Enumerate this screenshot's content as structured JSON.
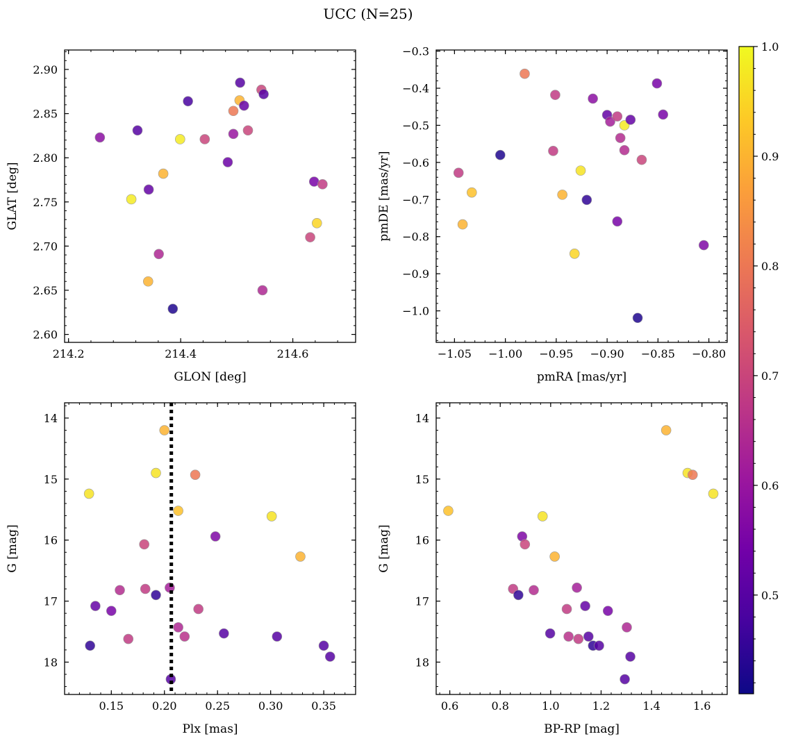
{
  "figure": {
    "title": "UCC (N=25)",
    "colormap": "plasma",
    "colorbar": {
      "range": [
        0.41,
        1.0
      ],
      "ticks": [
        0.5,
        0.6,
        0.7,
        0.8,
        0.9,
        1.0
      ],
      "tick_labels": [
        "0.5",
        "0.6",
        "0.7",
        "0.8",
        "0.9",
        "1.0"
      ]
    },
    "marker_edge_color": "#999999",
    "cmap_stops": [
      "#0d0887",
      "#46039f",
      "#7201a8",
      "#9c179e",
      "#bd3786",
      "#d8576b",
      "#ed7953",
      "#fb9f3a",
      "#fdca26",
      "#f0f921"
    ]
  },
  "chart_data": [
    {
      "type": "scatter",
      "xlabel": "GLON [deg]",
      "ylabel": "GLAT [deg]",
      "xlim": [
        214.193,
        214.712
      ],
      "ylim": [
        2.591,
        2.922
      ],
      "x_ticks": [
        214.2,
        214.4,
        214.6
      ],
      "x_tick_labels": [
        "214.2",
        "214.4",
        "214.6"
      ],
      "y_ticks": [
        2.6,
        2.65,
        2.7,
        2.75,
        2.8,
        2.85,
        2.9
      ],
      "y_tick_labels": [
        "2.60",
        "2.65",
        "2.70",
        "2.75",
        "2.80",
        "2.85",
        "2.90"
      ],
      "points": [
        {
          "x": 214.256,
          "y": 2.823,
          "c": 0.58
        },
        {
          "x": 214.323,
          "y": 2.831,
          "c": 0.5
        },
        {
          "x": 214.312,
          "y": 2.753,
          "c": 0.98
        },
        {
          "x": 214.343,
          "y": 2.764,
          "c": 0.52
        },
        {
          "x": 214.361,
          "y": 2.691,
          "c": 0.64
        },
        {
          "x": 214.342,
          "y": 2.66,
          "c": 0.9
        },
        {
          "x": 214.369,
          "y": 2.782,
          "c": 0.9
        },
        {
          "x": 214.386,
          "y": 2.629,
          "c": 0.43
        },
        {
          "x": 214.399,
          "y": 2.821,
          "c": 0.98
        },
        {
          "x": 214.413,
          "y": 2.864,
          "c": 0.48
        },
        {
          "x": 214.443,
          "y": 2.821,
          "c": 0.7
        },
        {
          "x": 214.484,
          "y": 2.795,
          "c": 0.53
        },
        {
          "x": 214.494,
          "y": 2.853,
          "c": 0.8
        },
        {
          "x": 214.494,
          "y": 2.827,
          "c": 0.6
        },
        {
          "x": 214.505,
          "y": 2.865,
          "c": 0.9
        },
        {
          "x": 214.506,
          "y": 2.885,
          "c": 0.5
        },
        {
          "x": 214.513,
          "y": 2.859,
          "c": 0.52
        },
        {
          "x": 214.52,
          "y": 2.831,
          "c": 0.7
        },
        {
          "x": 214.544,
          "y": 2.877,
          "c": 0.7
        },
        {
          "x": 214.548,
          "y": 2.872,
          "c": 0.5
        },
        {
          "x": 214.546,
          "y": 2.65,
          "c": 0.64
        },
        {
          "x": 214.631,
          "y": 2.71,
          "c": 0.7
        },
        {
          "x": 214.638,
          "y": 2.773,
          "c": 0.55
        },
        {
          "x": 214.643,
          "y": 2.726,
          "c": 0.95
        },
        {
          "x": 214.653,
          "y": 2.77,
          "c": 0.68
        }
      ]
    },
    {
      "type": "scatter",
      "xlabel": "pmRA [mas/yr]",
      "ylabel": "pmDE [mas/yr]",
      "xlim": [
        -1.068,
        -0.782
      ],
      "ylim": [
        -1.085,
        -0.297
      ],
      "x_ticks": [
        -1.05,
        -1.0,
        -0.95,
        -0.9,
        -0.85,
        -0.8
      ],
      "x_tick_labels": [
        "−1.05",
        "−1.00",
        "−0.95",
        "−0.90",
        "−0.85",
        "−0.80"
      ],
      "y_ticks": [
        -1.0,
        -0.9,
        -0.8,
        -0.7,
        -0.6,
        -0.5,
        -0.4,
        -0.3
      ],
      "y_tick_labels": [
        "−1.0",
        "−0.9",
        "−0.8",
        "−0.7",
        "−0.6",
        "−0.5",
        "−0.4",
        "−0.3"
      ],
      "points": [
        {
          "x": -1.046,
          "y": -0.628,
          "c": 0.68
        },
        {
          "x": -1.033,
          "y": -0.681,
          "c": 0.92
        },
        {
          "x": -1.042,
          "y": -0.767,
          "c": 0.9
        },
        {
          "x": -1.005,
          "y": -0.58,
          "c": 0.43
        },
        {
          "x": -0.981,
          "y": -0.361,
          "c": 0.8
        },
        {
          "x": -0.951,
          "y": -0.418,
          "c": 0.68
        },
        {
          "x": -0.953,
          "y": -0.569,
          "c": 0.68
        },
        {
          "x": -0.944,
          "y": -0.687,
          "c": 0.9
        },
        {
          "x": -0.926,
          "y": -0.622,
          "c": 0.97
        },
        {
          "x": -0.932,
          "y": -0.846,
          "c": 0.95
        },
        {
          "x": -0.92,
          "y": -0.701,
          "c": 0.45
        },
        {
          "x": -0.914,
          "y": -0.428,
          "c": 0.58
        },
        {
          "x": -0.9,
          "y": -0.472,
          "c": 0.52
        },
        {
          "x": -0.897,
          "y": -0.49,
          "c": 0.62
        },
        {
          "x": -0.89,
          "y": -0.476,
          "c": 0.68
        },
        {
          "x": -0.887,
          "y": -0.534,
          "c": 0.65
        },
        {
          "x": -0.883,
          "y": -0.567,
          "c": 0.65
        },
        {
          "x": -0.883,
          "y": -0.5,
          "c": 0.98
        },
        {
          "x": -0.877,
          "y": -0.485,
          "c": 0.52
        },
        {
          "x": -0.89,
          "y": -0.759,
          "c": 0.55
        },
        {
          "x": -0.87,
          "y": -1.019,
          "c": 0.43
        },
        {
          "x": -0.866,
          "y": -0.593,
          "c": 0.7
        },
        {
          "x": -0.851,
          "y": -0.387,
          "c": 0.55
        },
        {
          "x": -0.845,
          "y": -0.471,
          "c": 0.55
        },
        {
          "x": -0.805,
          "y": -0.823,
          "c": 0.56
        }
      ]
    },
    {
      "type": "scatter",
      "xlabel": "Plx [mas]",
      "ylabel": "G [mag]",
      "xlim": [
        0.106,
        0.38
      ],
      "ylim": [
        18.53,
        13.75
      ],
      "y_inverted": true,
      "x_ticks": [
        0.15,
        0.2,
        0.25,
        0.3,
        0.35
      ],
      "x_tick_labels": [
        "0.15",
        "0.20",
        "0.25",
        "0.30",
        "0.35"
      ],
      "y_ticks": [
        14,
        15,
        16,
        17,
        18
      ],
      "y_tick_labels": [
        "14",
        "15",
        "16",
        "17",
        "18"
      ],
      "vline": {
        "x": 0.2065,
        "style": "dotted"
      },
      "points": [
        {
          "x": 0.129,
          "y": 15.24,
          "c": 0.97
        },
        {
          "x": 0.13,
          "y": 17.73,
          "c": 0.45
        },
        {
          "x": 0.135,
          "y": 17.08,
          "c": 0.52
        },
        {
          "x": 0.15,
          "y": 17.16,
          "c": 0.55
        },
        {
          "x": 0.158,
          "y": 16.82,
          "c": 0.65
        },
        {
          "x": 0.166,
          "y": 17.62,
          "c": 0.68
        },
        {
          "x": 0.181,
          "y": 16.07,
          "c": 0.7
        },
        {
          "x": 0.182,
          "y": 16.8,
          "c": 0.68
        },
        {
          "x": 0.192,
          "y": 14.9,
          "c": 0.97
        },
        {
          "x": 0.192,
          "y": 16.9,
          "c": 0.45
        },
        {
          "x": 0.2,
          "y": 14.2,
          "c": 0.9
        },
        {
          "x": 0.205,
          "y": 16.78,
          "c": 0.62
        },
        {
          "x": 0.206,
          "y": 18.28,
          "c": 0.5
        },
        {
          "x": 0.213,
          "y": 15.52,
          "c": 0.92
        },
        {
          "x": 0.213,
          "y": 17.43,
          "c": 0.64
        },
        {
          "x": 0.219,
          "y": 17.58,
          "c": 0.66
        },
        {
          "x": 0.229,
          "y": 14.93,
          "c": 0.8
        },
        {
          "x": 0.232,
          "y": 17.13,
          "c": 0.68
        },
        {
          "x": 0.248,
          "y": 15.94,
          "c": 0.56
        },
        {
          "x": 0.256,
          "y": 17.53,
          "c": 0.5
        },
        {
          "x": 0.301,
          "y": 15.61,
          "c": 0.97
        },
        {
          "x": 0.306,
          "y": 17.58,
          "c": 0.5
        },
        {
          "x": 0.328,
          "y": 16.27,
          "c": 0.9
        },
        {
          "x": 0.35,
          "y": 17.73,
          "c": 0.5
        },
        {
          "x": 0.356,
          "y": 17.91,
          "c": 0.5
        }
      ]
    },
    {
      "type": "scatter",
      "xlabel": "BP-RP [mag]",
      "ylabel": "G [mag]",
      "xlim": [
        0.546,
        1.7
      ],
      "ylim": [
        18.53,
        13.75
      ],
      "y_inverted": true,
      "x_ticks": [
        0.6,
        0.8,
        1.0,
        1.2,
        1.4,
        1.6
      ],
      "x_tick_labels": [
        "0.6",
        "0.8",
        "1.0",
        "1.2",
        "1.4",
        "1.6"
      ],
      "y_ticks": [
        14,
        15,
        16,
        17,
        18
      ],
      "y_tick_labels": [
        "14",
        "15",
        "16",
        "17",
        "18"
      ],
      "points": [
        {
          "x": 0.594,
          "y": 15.52,
          "c": 0.92
        },
        {
          "x": 0.851,
          "y": 16.8,
          "c": 0.68
        },
        {
          "x": 0.872,
          "y": 16.9,
          "c": 0.45
        },
        {
          "x": 0.887,
          "y": 15.94,
          "c": 0.56
        },
        {
          "x": 0.898,
          "y": 16.07,
          "c": 0.7
        },
        {
          "x": 0.933,
          "y": 16.82,
          "c": 0.65
        },
        {
          "x": 0.968,
          "y": 15.61,
          "c": 0.97
        },
        {
          "x": 0.998,
          "y": 17.53,
          "c": 0.5
        },
        {
          "x": 1.016,
          "y": 16.27,
          "c": 0.9
        },
        {
          "x": 1.064,
          "y": 17.13,
          "c": 0.68
        },
        {
          "x": 1.071,
          "y": 17.58,
          "c": 0.66
        },
        {
          "x": 1.104,
          "y": 16.78,
          "c": 0.62
        },
        {
          "x": 1.11,
          "y": 17.62,
          "c": 0.68
        },
        {
          "x": 1.137,
          "y": 17.08,
          "c": 0.52
        },
        {
          "x": 1.15,
          "y": 17.58,
          "c": 0.5
        },
        {
          "x": 1.168,
          "y": 17.73,
          "c": 0.45
        },
        {
          "x": 1.192,
          "y": 17.73,
          "c": 0.5
        },
        {
          "x": 1.227,
          "y": 17.16,
          "c": 0.55
        },
        {
          "x": 1.294,
          "y": 18.28,
          "c": 0.5
        },
        {
          "x": 1.302,
          "y": 17.43,
          "c": 0.64
        },
        {
          "x": 1.316,
          "y": 17.91,
          "c": 0.5
        },
        {
          "x": 1.458,
          "y": 14.2,
          "c": 0.9
        },
        {
          "x": 1.543,
          "y": 14.9,
          "c": 0.97
        },
        {
          "x": 1.563,
          "y": 14.93,
          "c": 0.8
        },
        {
          "x": 1.645,
          "y": 15.24,
          "c": 0.97
        }
      ]
    }
  ]
}
